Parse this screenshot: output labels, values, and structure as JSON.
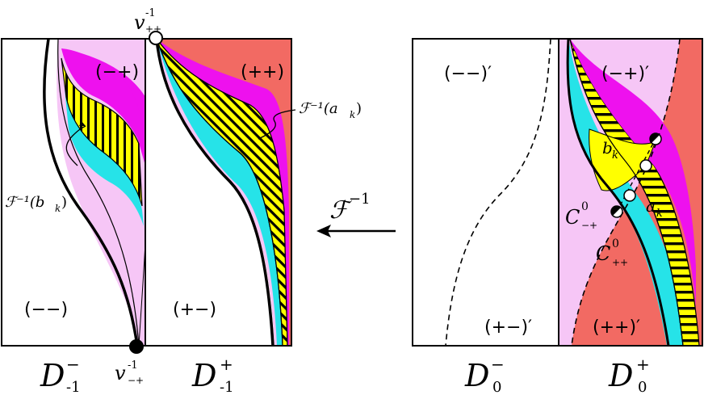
{
  "colors": {
    "light_pink": "#f6c6f6",
    "salmon": "#f26a63",
    "magenta": "#ee11ee",
    "cyan": "#26e3e8",
    "yellow": "#ffff00",
    "black": "#000000"
  },
  "left": {
    "panel_left_name": "D",
    "panel_left_sup": "−",
    "panel_left_sub": "-1",
    "panel_right_name": "D",
    "panel_right_sup": "+",
    "panel_right_sub": "-1",
    "region_mp": "(−+)",
    "region_pp": "(++)",
    "region_mm": "(−−)",
    "region_pm": "(+−)",
    "top_point": "v",
    "top_point_sup": "-1",
    "top_point_sub": "++",
    "bottom_point": "v",
    "bottom_point_sup": "-1",
    "bottom_point_sub": "−+",
    "annot_a": "ℱ⁻¹(a",
    "annot_a_sub": "k",
    "annot_b": "ℱ⁻¹(b",
    "annot_b_sub": "k",
    "close_paren": ")"
  },
  "arrow": {
    "label": "ℱ",
    "label_sup": "−1"
  },
  "right": {
    "panel_left_name": "D",
    "panel_left_sup": "−",
    "panel_left_sub": "0",
    "panel_right_name": "D",
    "panel_right_sup": "+",
    "panel_right_sub": "0",
    "region_mm": "(−−)′",
    "region_mp": "(−+)′",
    "region_pm": "(+−)′",
    "region_pp": "(++)′",
    "b_label": "b",
    "b_sub": "k",
    "a_label": "a",
    "a_sub": "k",
    "c1": "C",
    "c1_sup": "0",
    "c1_sub": "−+",
    "c2": "C",
    "c2_sup": "0",
    "c2_sub": "++"
  }
}
